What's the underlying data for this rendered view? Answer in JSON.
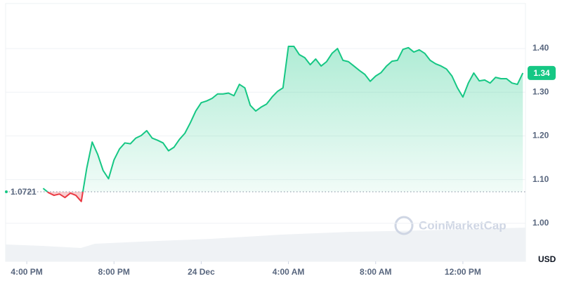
{
  "chart_data": {
    "type": "line",
    "watermark": "CoinMarketCap",
    "y_unit_label": "USD",
    "reference_line": {
      "value": 1.0721,
      "label": "1.0721"
    },
    "last_price": {
      "value": 1.344,
      "label": "1.34"
    },
    "up_color": "#16c784",
    "down_color": "#ea3943",
    "grid": true,
    "x": [
      16.75,
      17,
      17.25,
      17.5,
      17.75,
      18,
      18.25,
      18.5,
      18.75,
      19,
      19.25,
      19.5,
      19.75,
      20,
      20.25,
      20.5,
      20.75,
      21,
      21.25,
      21.5,
      21.75,
      22,
      22.25,
      22.5,
      22.75,
      23,
      23.25,
      23.5,
      23.75,
      24,
      24.25,
      24.5,
      24.75,
      25,
      25.25,
      25.5,
      25.75,
      26,
      26.25,
      26.5,
      26.75,
      27,
      27.25,
      27.5,
      27.75,
      28,
      28.25,
      28.5,
      28.75,
      29,
      29.25,
      29.5,
      29.75,
      30,
      30.25,
      30.5,
      30.75,
      31,
      31.25,
      31.5,
      31.75,
      32,
      32.25,
      32.5,
      32.75,
      33,
      33.25,
      33.5,
      33.75,
      34,
      34.25,
      34.5,
      34.75,
      35,
      35.25,
      35.5,
      35.75,
      36,
      36.25,
      36.5,
      36.75,
      37,
      37.25,
      37.5,
      37.75,
      38,
      38.25,
      38.5,
      38.75
    ],
    "series": [
      {
        "name": "Price",
        "values": [
          1.08,
          1.07,
          1.064,
          1.067,
          1.059,
          1.069,
          1.064,
          1.05,
          1.126,
          1.186,
          1.158,
          1.121,
          1.102,
          1.145,
          1.17,
          1.184,
          1.182,
          1.195,
          1.201,
          1.212,
          1.195,
          1.19,
          1.184,
          1.166,
          1.174,
          1.192,
          1.206,
          1.23,
          1.257,
          1.276,
          1.28,
          1.286,
          1.296,
          1.296,
          1.298,
          1.292,
          1.318,
          1.31,
          1.27,
          1.257,
          1.266,
          1.273,
          1.289,
          1.302,
          1.31,
          1.405,
          1.405,
          1.386,
          1.379,
          1.363,
          1.376,
          1.36,
          1.37,
          1.389,
          1.4,
          1.373,
          1.37,
          1.36,
          1.35,
          1.341,
          1.325,
          1.337,
          1.345,
          1.36,
          1.371,
          1.373,
          1.398,
          1.402,
          1.392,
          1.397,
          1.389,
          1.373,
          1.365,
          1.36,
          1.353,
          1.337,
          1.31,
          1.289,
          1.321,
          1.344,
          1.326,
          1.328,
          1.321,
          1.334,
          1.331,
          1.331,
          1.321,
          1.318,
          1.344
        ]
      }
    ],
    "xlim": [
      15.03,
      38.87
    ],
    "xticks": [
      {
        "value": 16,
        "label": "4:00 PM"
      },
      {
        "value": 20,
        "label": "8:00 PM"
      },
      {
        "value": 24,
        "label": "24 Dec"
      },
      {
        "value": 28,
        "label": "4:00 AM"
      },
      {
        "value": 32,
        "label": "8:00 AM"
      },
      {
        "value": 36,
        "label": "12:00 PM"
      }
    ],
    "ylim": [
      0.913,
      1.503
    ],
    "yticks": [
      {
        "value": 1,
        "label": "1.00"
      },
      {
        "value": 1.1,
        "label": "1.10"
      },
      {
        "value": 1.2,
        "label": "1.20"
      },
      {
        "value": 1.3,
        "label": "1.30"
      },
      {
        "value": 1.4,
        "label": "1.40"
      }
    ]
  }
}
